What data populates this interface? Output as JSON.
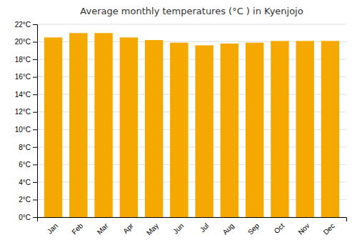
{
  "chart_data": {
    "type": "bar",
    "title": "Average monthly temperatures (°C ) in Kyenjojo",
    "categories": [
      "Jan",
      "Feb",
      "Mar",
      "Apr",
      "May",
      "Jun",
      "Jul",
      "Aug",
      "Sep",
      "Oct",
      "Nov",
      "Dec"
    ],
    "values": [
      20.5,
      21.0,
      21.0,
      20.5,
      20.2,
      19.9,
      19.6,
      19.8,
      19.9,
      20.1,
      20.1,
      20.1
    ],
    "color": "#F5A800",
    "ylim": [
      0,
      22
    ],
    "yticks": [
      {
        "value": 0,
        "label": "0°C"
      },
      {
        "value": 2,
        "label": "2°C"
      },
      {
        "value": 4,
        "label": "4°C"
      },
      {
        "value": 6,
        "label": "6°C"
      },
      {
        "value": 8,
        "label": "8°C"
      },
      {
        "value": 10,
        "label": "10°C"
      },
      {
        "value": 12,
        "label": "12°C"
      },
      {
        "value": 14,
        "label": "14°C"
      },
      {
        "value": 16,
        "label": "16°C"
      },
      {
        "value": 18,
        "label": "18°C"
      },
      {
        "value": 20,
        "label": "20°C"
      },
      {
        "value": 22,
        "label": "22°C"
      }
    ],
    "grid": true
  }
}
